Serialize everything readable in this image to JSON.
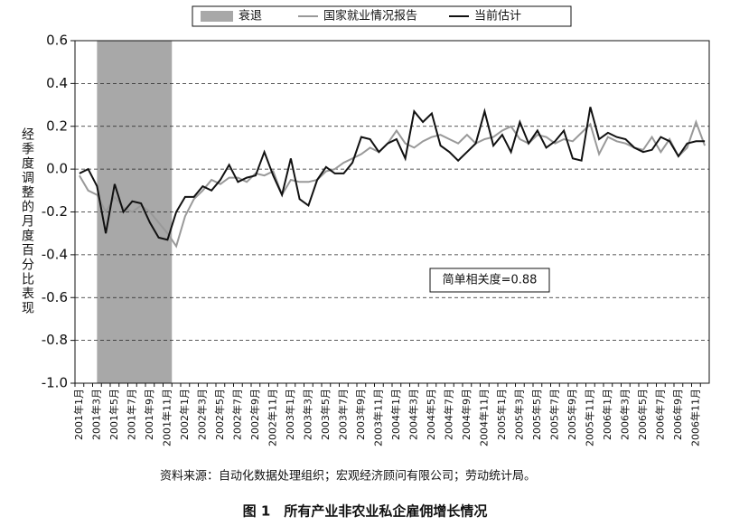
{
  "chart_data": {
    "type": "line",
    "title": "图 1　所有产业非农业私企雇佣增长情况",
    "source": "资料来源：自动化数据处理组织；宏观经济顾问有限公司；劳动统计局。",
    "y_label": "经季度调整的月度百分比表现",
    "annotation": "简单相关度=0.88",
    "recession": {
      "name": "衰退",
      "color": "#a8a8a8",
      "start": "2001年3月",
      "end": "2001年11月"
    },
    "categories": [
      "2001年1月",
      null,
      "2001年3月",
      null,
      "2001年5月",
      null,
      "2001年7月",
      null,
      "2001年9月",
      null,
      "2001年11月",
      null,
      "2002年1月",
      null,
      "2002年3月",
      null,
      "2002年5月",
      null,
      "2002年7月",
      null,
      "2002年9月",
      null,
      "2002年11月",
      null,
      "2003年1月",
      null,
      "2003年3月",
      null,
      "2003年5月",
      null,
      "2003年7月",
      null,
      "2003年9月",
      null,
      "2003年11月",
      null,
      "2004年1月",
      null,
      "2004年3月",
      null,
      "2004年5月",
      null,
      "2004年7月",
      null,
      "2004年9月",
      null,
      "2004年11月",
      null,
      "2005年1月",
      null,
      "2005年3月",
      null,
      "2005年5月",
      null,
      "2005年7月",
      null,
      "2005年9月",
      null,
      "2005年11月",
      null,
      "2006年1月",
      null,
      "2006年3月",
      null,
      "2006年5月",
      null,
      "2006年7月",
      null,
      "2006年9月",
      null,
      "2006年11月",
      null
    ],
    "series": [
      {
        "name": "国家就业情况报告",
        "color": "#999999",
        "values": [
          -0.03,
          -0.1,
          -0.12,
          -0.2,
          -0.13,
          -0.18,
          -0.2,
          -0.17,
          -0.2,
          -0.25,
          -0.3,
          -0.36,
          -0.22,
          -0.14,
          -0.1,
          -0.05,
          -0.07,
          -0.04,
          -0.04,
          -0.06,
          -0.02,
          -0.03,
          -0.01,
          -0.12,
          -0.05,
          -0.06,
          -0.06,
          -0.05,
          -0.01,
          0.0,
          0.03,
          0.05,
          0.07,
          0.1,
          0.08,
          0.12,
          0.18,
          0.12,
          0.1,
          0.13,
          0.15,
          0.16,
          0.14,
          0.12,
          0.16,
          0.12,
          0.14,
          0.15,
          0.18,
          0.2,
          0.14,
          0.12,
          0.16,
          0.15,
          0.12,
          0.14,
          0.13,
          0.17,
          0.21,
          0.07,
          0.15,
          0.13,
          0.12,
          0.1,
          0.09,
          0.15,
          0.08,
          0.14,
          0.06,
          0.1,
          0.22,
          0.11
        ]
      },
      {
        "name": "当前估计",
        "color": "#111111",
        "values": [
          -0.02,
          0.0,
          -0.08,
          -0.3,
          -0.07,
          -0.2,
          -0.15,
          -0.16,
          -0.25,
          -0.32,
          -0.33,
          -0.2,
          -0.13,
          -0.13,
          -0.08,
          -0.1,
          -0.05,
          0.02,
          -0.06,
          -0.04,
          -0.03,
          0.08,
          -0.03,
          -0.12,
          0.05,
          -0.14,
          -0.17,
          -0.05,
          0.01,
          -0.02,
          -0.02,
          0.03,
          0.15,
          0.14,
          0.08,
          0.12,
          0.14,
          0.05,
          0.27,
          0.22,
          0.26,
          0.11,
          0.08,
          0.04,
          0.08,
          0.12,
          0.27,
          0.11,
          0.16,
          0.08,
          0.22,
          0.12,
          0.18,
          0.1,
          0.13,
          0.18,
          0.05,
          0.04,
          0.29,
          0.14,
          0.17,
          0.15,
          0.14,
          0.1,
          0.08,
          0.09,
          0.15,
          0.13,
          0.06,
          0.12,
          0.13,
          0.13
        ]
      }
    ],
    "ylim": [
      -1.0,
      0.6
    ],
    "yticks": [
      0.6,
      0.4,
      0.2,
      {
        "value": 0,
        "label": "0.0"
      },
      -0.2,
      -0.4,
      -0.6,
      -0.8,
      {
        "value": -1,
        "label": "-1.0"
      }
    ],
    "grid": true
  }
}
